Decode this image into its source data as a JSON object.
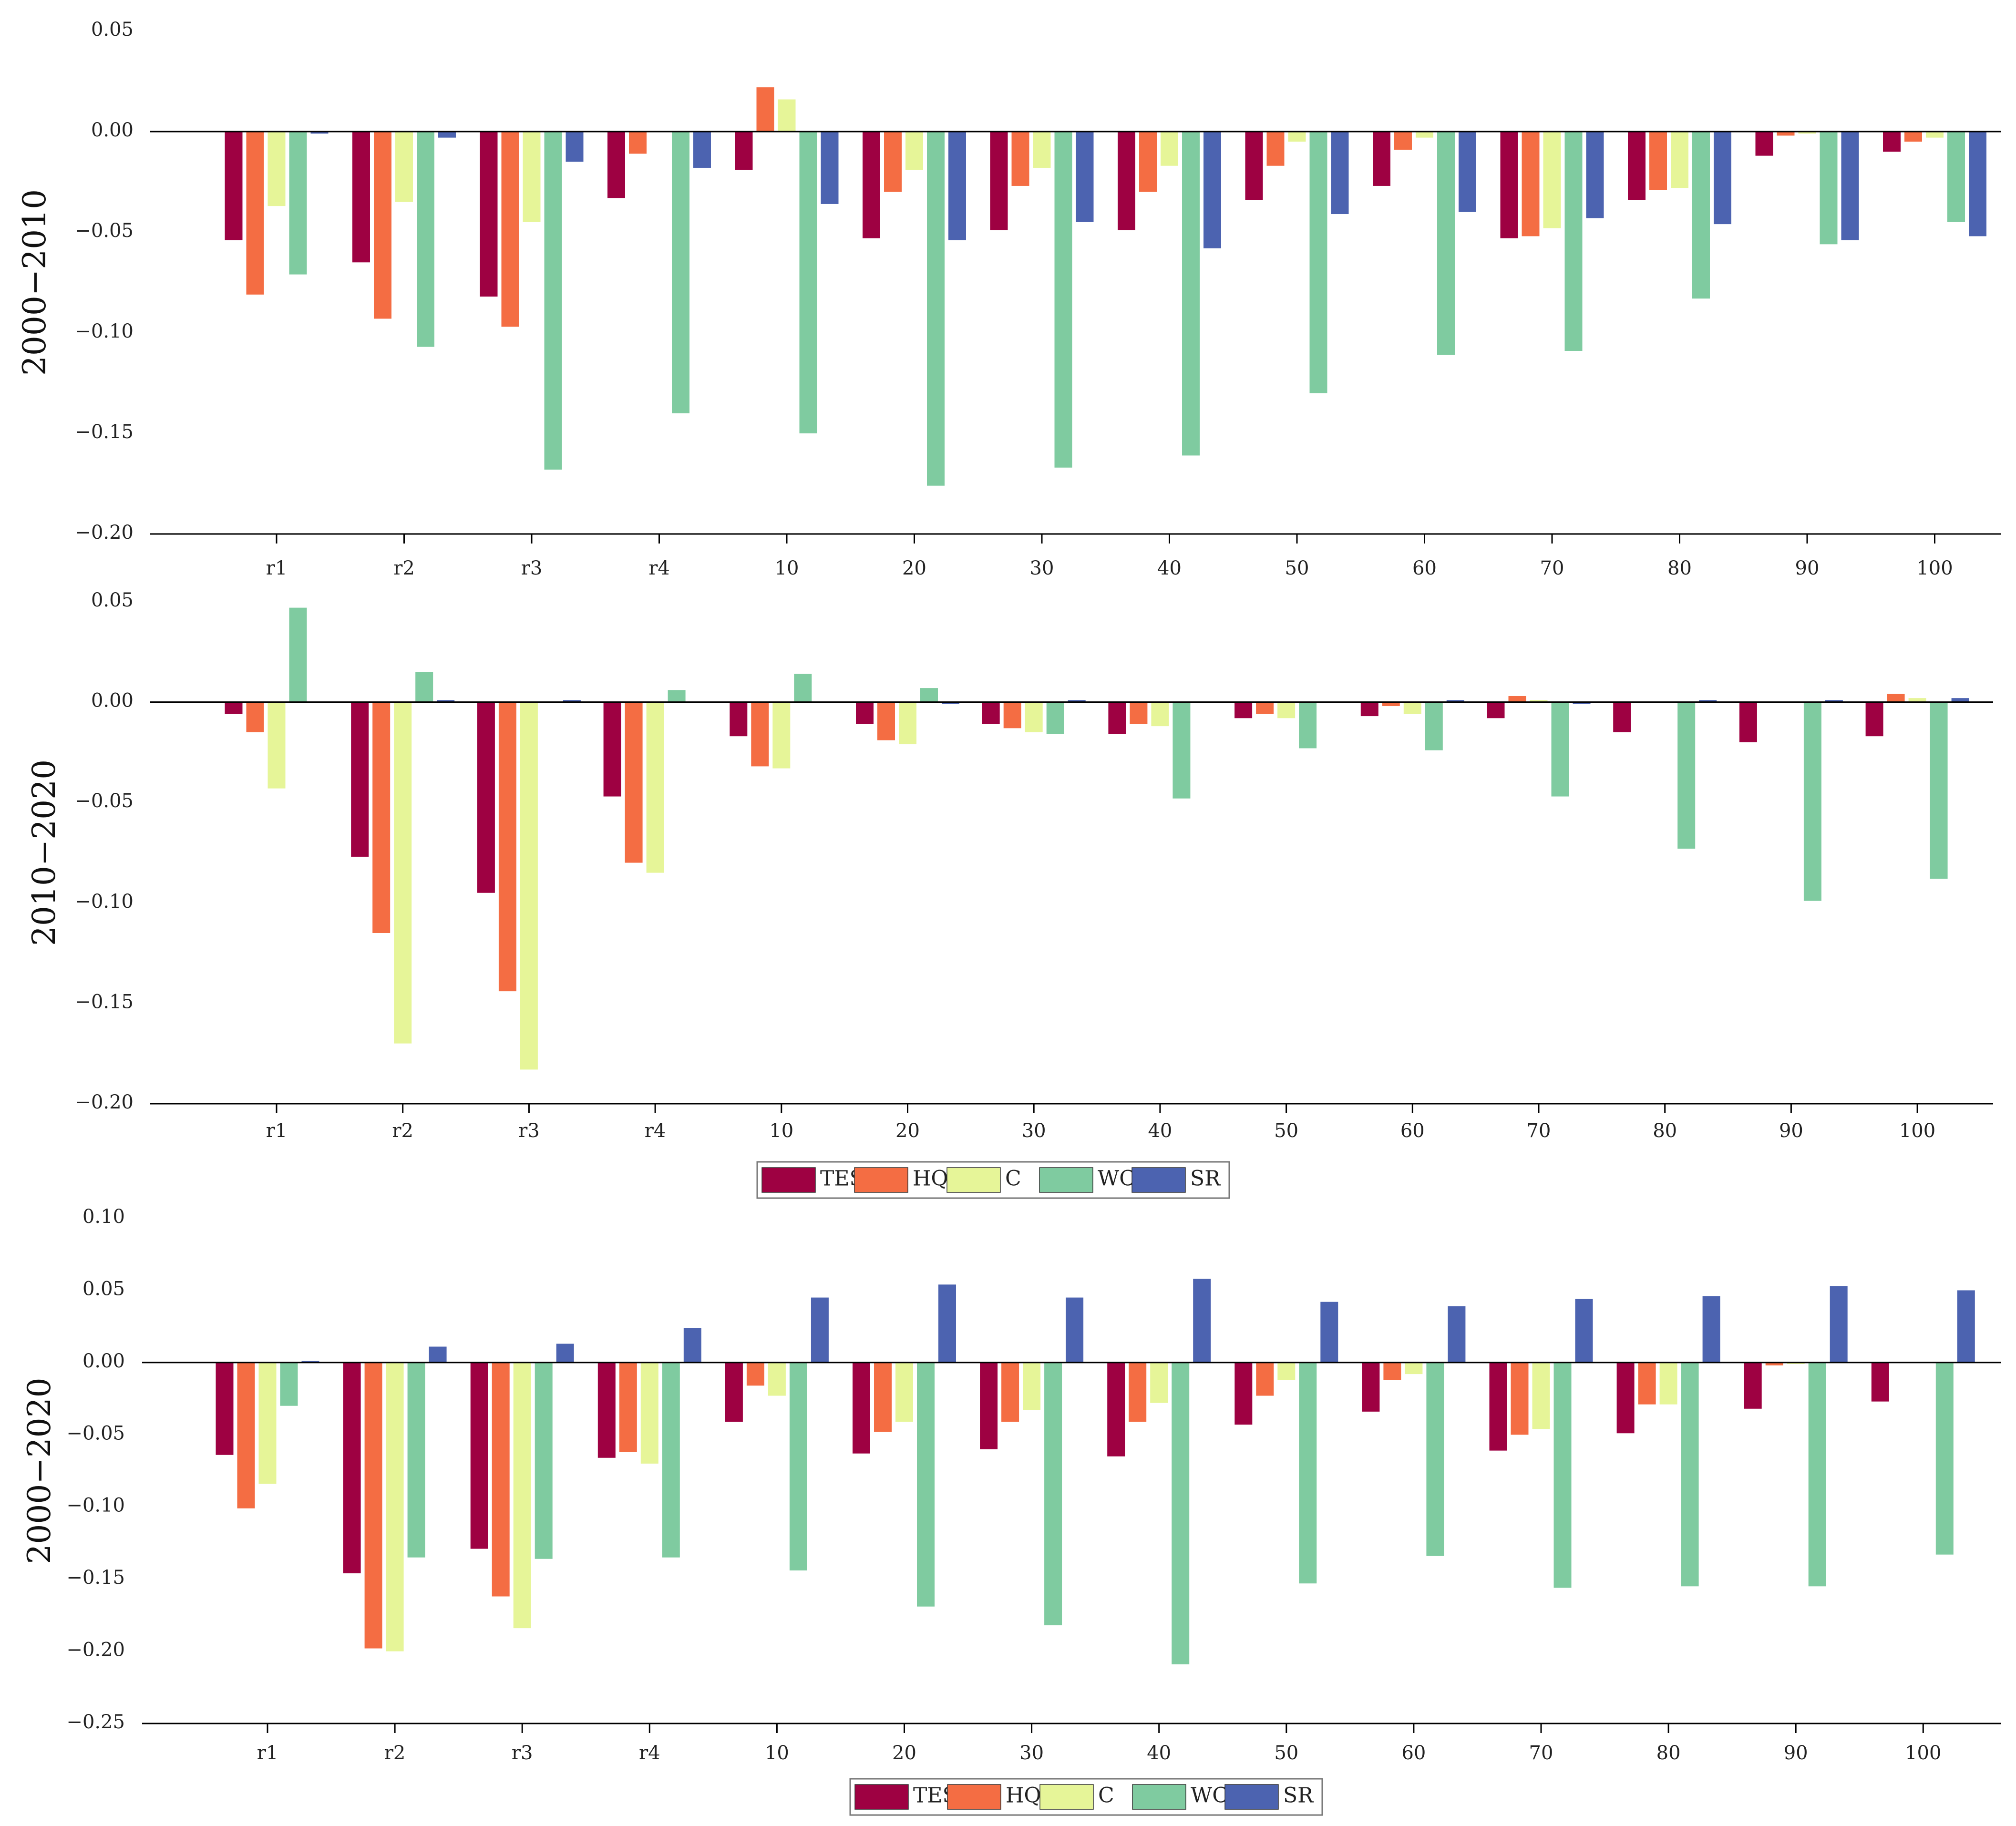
{
  "chart_data": [
    {
      "type": "bar",
      "ylabel": "2000−2010",
      "ylim": [
        -0.2,
        0.05
      ],
      "yticks": [
        -0.2,
        -0.15,
        -0.1,
        -0.05,
        0.0,
        0.05
      ],
      "ytick_labels": [
        "−0.20",
        "−0.15",
        "−0.10",
        "−0.05",
        "0.00",
        "0.05"
      ],
      "categories": [
        "r1",
        "r2",
        "r3",
        "r4",
        "10",
        "20",
        "30",
        "40",
        "50",
        "60",
        "70",
        "80",
        "90",
        "100"
      ],
      "grid": false,
      "series": [
        {
          "name": "TES",
          "color": "#9E0142",
          "values": [
            -0.054,
            -0.065,
            -0.082,
            -0.033,
            -0.019,
            -0.053,
            -0.049,
            -0.049,
            -0.034,
            -0.027,
            -0.053,
            -0.034,
            -0.012,
            -0.01
          ]
        },
        {
          "name": "HQ",
          "color": "#F46D43",
          "values": [
            -0.081,
            -0.093,
            -0.097,
            -0.011,
            0.022,
            -0.03,
            -0.027,
            -0.03,
            -0.017,
            -0.009,
            -0.052,
            -0.029,
            -0.002,
            -0.005
          ]
        },
        {
          "name": "C",
          "color": "#E6F598",
          "values": [
            -0.037,
            -0.035,
            -0.045,
            0.0,
            0.016,
            -0.019,
            -0.018,
            -0.017,
            -0.005,
            -0.003,
            -0.048,
            -0.028,
            -0.001,
            -0.003
          ]
        },
        {
          "name": "WC",
          "color": "#7FCBA0",
          "values": [
            -0.071,
            -0.107,
            -0.168,
            -0.14,
            -0.15,
            -0.176,
            -0.167,
            -0.161,
            -0.13,
            -0.111,
            -0.109,
            -0.083,
            -0.056,
            -0.045
          ]
        },
        {
          "name": "SR",
          "color": "#4C63B0",
          "values": [
            -0.001,
            -0.003,
            -0.015,
            -0.018,
            -0.036,
            -0.054,
            -0.045,
            -0.058,
            -0.041,
            -0.04,
            -0.043,
            -0.046,
            -0.054,
            -0.052
          ]
        }
      ]
    },
    {
      "type": "bar",
      "ylabel": "2010−2020",
      "ylim": [
        -0.2,
        0.05
      ],
      "yticks": [
        -0.2,
        -0.15,
        -0.1,
        -0.05,
        0.0,
        0.05
      ],
      "ytick_labels": [
        "−0.20",
        "−0.15",
        "−0.10",
        "−0.05",
        "0.00",
        "0.05"
      ],
      "categories": [
        "r1",
        "r2",
        "r3",
        "r4",
        "10",
        "20",
        "30",
        "40",
        "50",
        "60",
        "70",
        "80",
        "90",
        "100"
      ],
      "grid": false,
      "series": [
        {
          "name": "TES",
          "color": "#9E0142",
          "values": [
            -0.006,
            -0.077,
            -0.095,
            -0.047,
            -0.017,
            -0.011,
            -0.011,
            -0.016,
            -0.008,
            -0.007,
            -0.008,
            -0.015,
            -0.02,
            -0.017
          ]
        },
        {
          "name": "HQ",
          "color": "#F46D43",
          "values": [
            -0.015,
            -0.115,
            -0.144,
            -0.08,
            -0.032,
            -0.019,
            -0.013,
            -0.011,
            -0.006,
            -0.002,
            0.003,
            0.0,
            0.0,
            0.004
          ]
        },
        {
          "name": "C",
          "color": "#E6F598",
          "values": [
            -0.043,
            -0.17,
            -0.183,
            -0.085,
            -0.033,
            -0.021,
            -0.015,
            -0.012,
            -0.008,
            -0.006,
            0.001,
            0.0,
            0.0,
            0.002
          ]
        },
        {
          "name": "WC",
          "color": "#7FCBA0",
          "values": [
            0.047,
            0.015,
            0.0,
            0.006,
            0.014,
            0.007,
            -0.016,
            -0.048,
            -0.023,
            -0.024,
            -0.047,
            -0.073,
            -0.099,
            -0.088
          ]
        },
        {
          "name": "SR",
          "color": "#4C63B0",
          "values": [
            0.0,
            0.001,
            0.001,
            0.0,
            0.0,
            -0.001,
            0.001,
            0.0,
            0.0,
            0.001,
            -0.001,
            0.001,
            0.001,
            0.002
          ]
        }
      ],
      "legend": {
        "placement": "bottom-center",
        "entries": [
          "TES",
          "HQ",
          "C",
          "WC",
          "SR"
        ]
      }
    },
    {
      "type": "bar",
      "ylabel": "2000−2020",
      "ylim": [
        -0.25,
        0.1
      ],
      "yticks": [
        -0.25,
        -0.2,
        -0.15,
        -0.1,
        -0.05,
        0.0,
        0.05,
        0.1
      ],
      "ytick_labels": [
        "−0.25",
        "−0.20",
        "−0.15",
        "−0.10",
        "−0.05",
        "0.00",
        "0.05",
        "0.10"
      ],
      "categories": [
        "r1",
        "r2",
        "r3",
        "r4",
        "10",
        "20",
        "30",
        "40",
        "50",
        "60",
        "70",
        "80",
        "90",
        "100"
      ],
      "grid": false,
      "series": [
        {
          "name": "TES",
          "color": "#9E0142",
          "values": [
            -0.064,
            -0.146,
            -0.129,
            -0.066,
            -0.041,
            -0.063,
            -0.06,
            -0.065,
            -0.043,
            -0.034,
            -0.061,
            -0.049,
            -0.032,
            -0.027
          ]
        },
        {
          "name": "HQ",
          "color": "#F46D43",
          "values": [
            -0.101,
            -0.198,
            -0.162,
            -0.062,
            -0.016,
            -0.048,
            -0.041,
            -0.041,
            -0.023,
            -0.012,
            -0.05,
            -0.029,
            -0.002,
            0.0
          ]
        },
        {
          "name": "C",
          "color": "#E6F598",
          "values": [
            -0.084,
            -0.2,
            -0.184,
            -0.07,
            -0.023,
            -0.041,
            -0.033,
            -0.028,
            -0.012,
            -0.008,
            -0.046,
            -0.029,
            -0.001,
            0.0
          ]
        },
        {
          "name": "WC",
          "color": "#7FCBA0",
          "values": [
            -0.03,
            -0.135,
            -0.136,
            -0.135,
            -0.144,
            -0.169,
            -0.182,
            -0.209,
            -0.153,
            -0.134,
            -0.156,
            -0.155,
            -0.155,
            -0.133
          ]
        },
        {
          "name": "SR",
          "color": "#4C63B0",
          "values": [
            0.001,
            0.011,
            0.013,
            0.024,
            0.045,
            0.054,
            0.045,
            0.058,
            0.042,
            0.039,
            0.044,
            0.046,
            0.053,
            0.05
          ]
        }
      ],
      "legend": {
        "placement": "bottom-center",
        "entries": [
          "TES",
          "HQ",
          "C",
          "WC",
          "SR"
        ]
      }
    }
  ]
}
